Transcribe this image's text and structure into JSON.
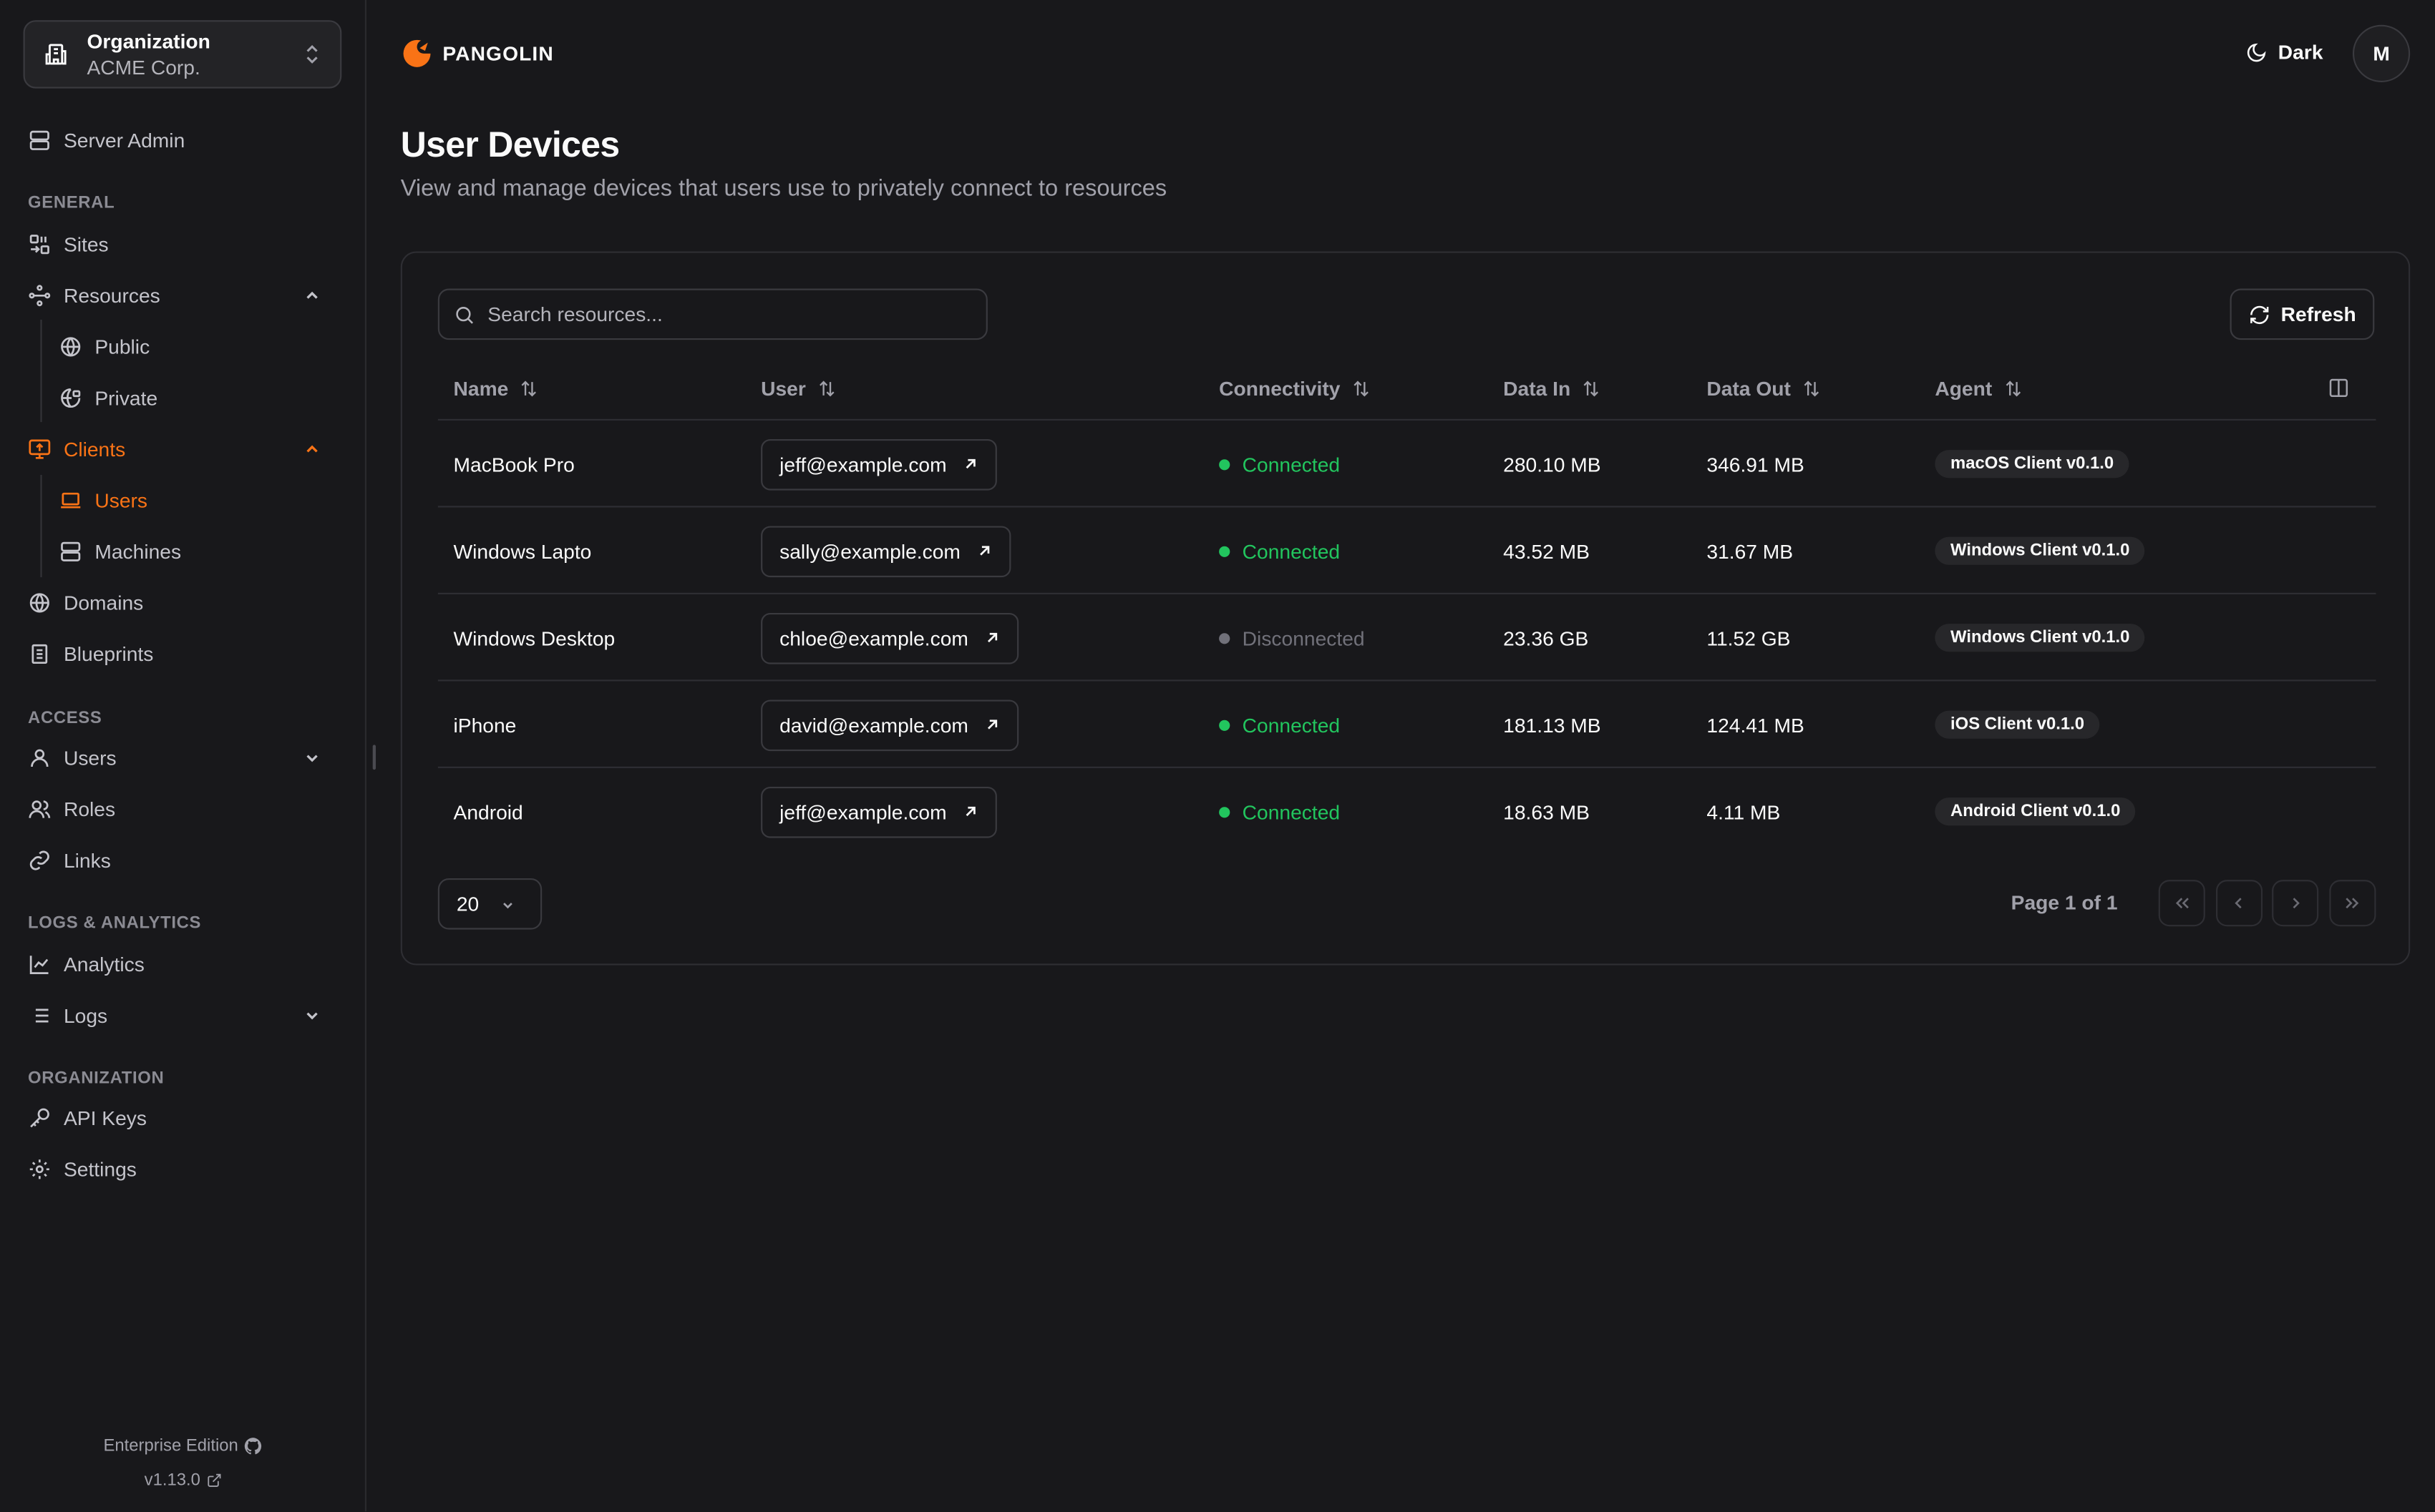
{
  "org": {
    "label": "Organization",
    "name": "ACME Corp."
  },
  "sidebar": {
    "server_admin": "Server Admin",
    "sections": {
      "general": "GENERAL",
      "access": "ACCESS",
      "logs": "LOGS & ANALYTICS",
      "organization": "ORGANIZATION"
    },
    "items": {
      "sites": "Sites",
      "resources": "Resources",
      "public": "Public",
      "private": "Private",
      "clients": "Clients",
      "users": "Users",
      "machines": "Machines",
      "domains": "Domains",
      "blueprints": "Blueprints",
      "access_users": "Users",
      "roles": "Roles",
      "links": "Links",
      "analytics": "Analytics",
      "logs": "Logs",
      "api_keys": "API Keys",
      "settings": "Settings"
    },
    "footer": {
      "edition": "Enterprise Edition",
      "version": "v1.13.0"
    }
  },
  "header": {
    "brand": "PANGOLIN",
    "theme_label": "Dark",
    "avatar_initial": "M"
  },
  "page": {
    "title": "User Devices",
    "subtitle": "View and manage devices that users use to privately connect to resources"
  },
  "toolbar": {
    "search_placeholder": "Search resources...",
    "refresh_label": "Refresh"
  },
  "table": {
    "columns": [
      "Name",
      "User",
      "Connectivity",
      "Data In",
      "Data Out",
      "Agent"
    ],
    "rows": [
      {
        "name": "MacBook Pro",
        "user": "jeff@example.com",
        "status": "Connected",
        "data_in": "280.10 MB",
        "data_out": "346.91 MB",
        "agent": "macOS Client v0.1.0"
      },
      {
        "name": "Windows Lapto",
        "user": "sally@example.com",
        "status": "Connected",
        "data_in": "43.52 MB",
        "data_out": "31.67 MB",
        "agent": "Windows Client v0.1.0"
      },
      {
        "name": "Windows Desktop",
        "user": "chloe@example.com",
        "status": "Disconnected",
        "data_in": "23.36 GB",
        "data_out": "11.52 GB",
        "agent": "Windows Client v0.1.0"
      },
      {
        "name": "iPhone",
        "user": "david@example.com",
        "status": "Connected",
        "data_in": "181.13 MB",
        "data_out": "124.41 MB",
        "agent": "iOS Client v0.1.0"
      },
      {
        "name": "Android",
        "user": "jeff@example.com",
        "status": "Connected",
        "data_in": "18.63 MB",
        "data_out": "4.11 MB",
        "agent": "Android Client v0.1.0"
      }
    ]
  },
  "pagination": {
    "page_size": "20",
    "page_info": "Page 1 of 1"
  },
  "colors": {
    "accent": "#f97316",
    "connected": "#22c55e",
    "disconnected": "#71717a",
    "background": "#18181b"
  }
}
